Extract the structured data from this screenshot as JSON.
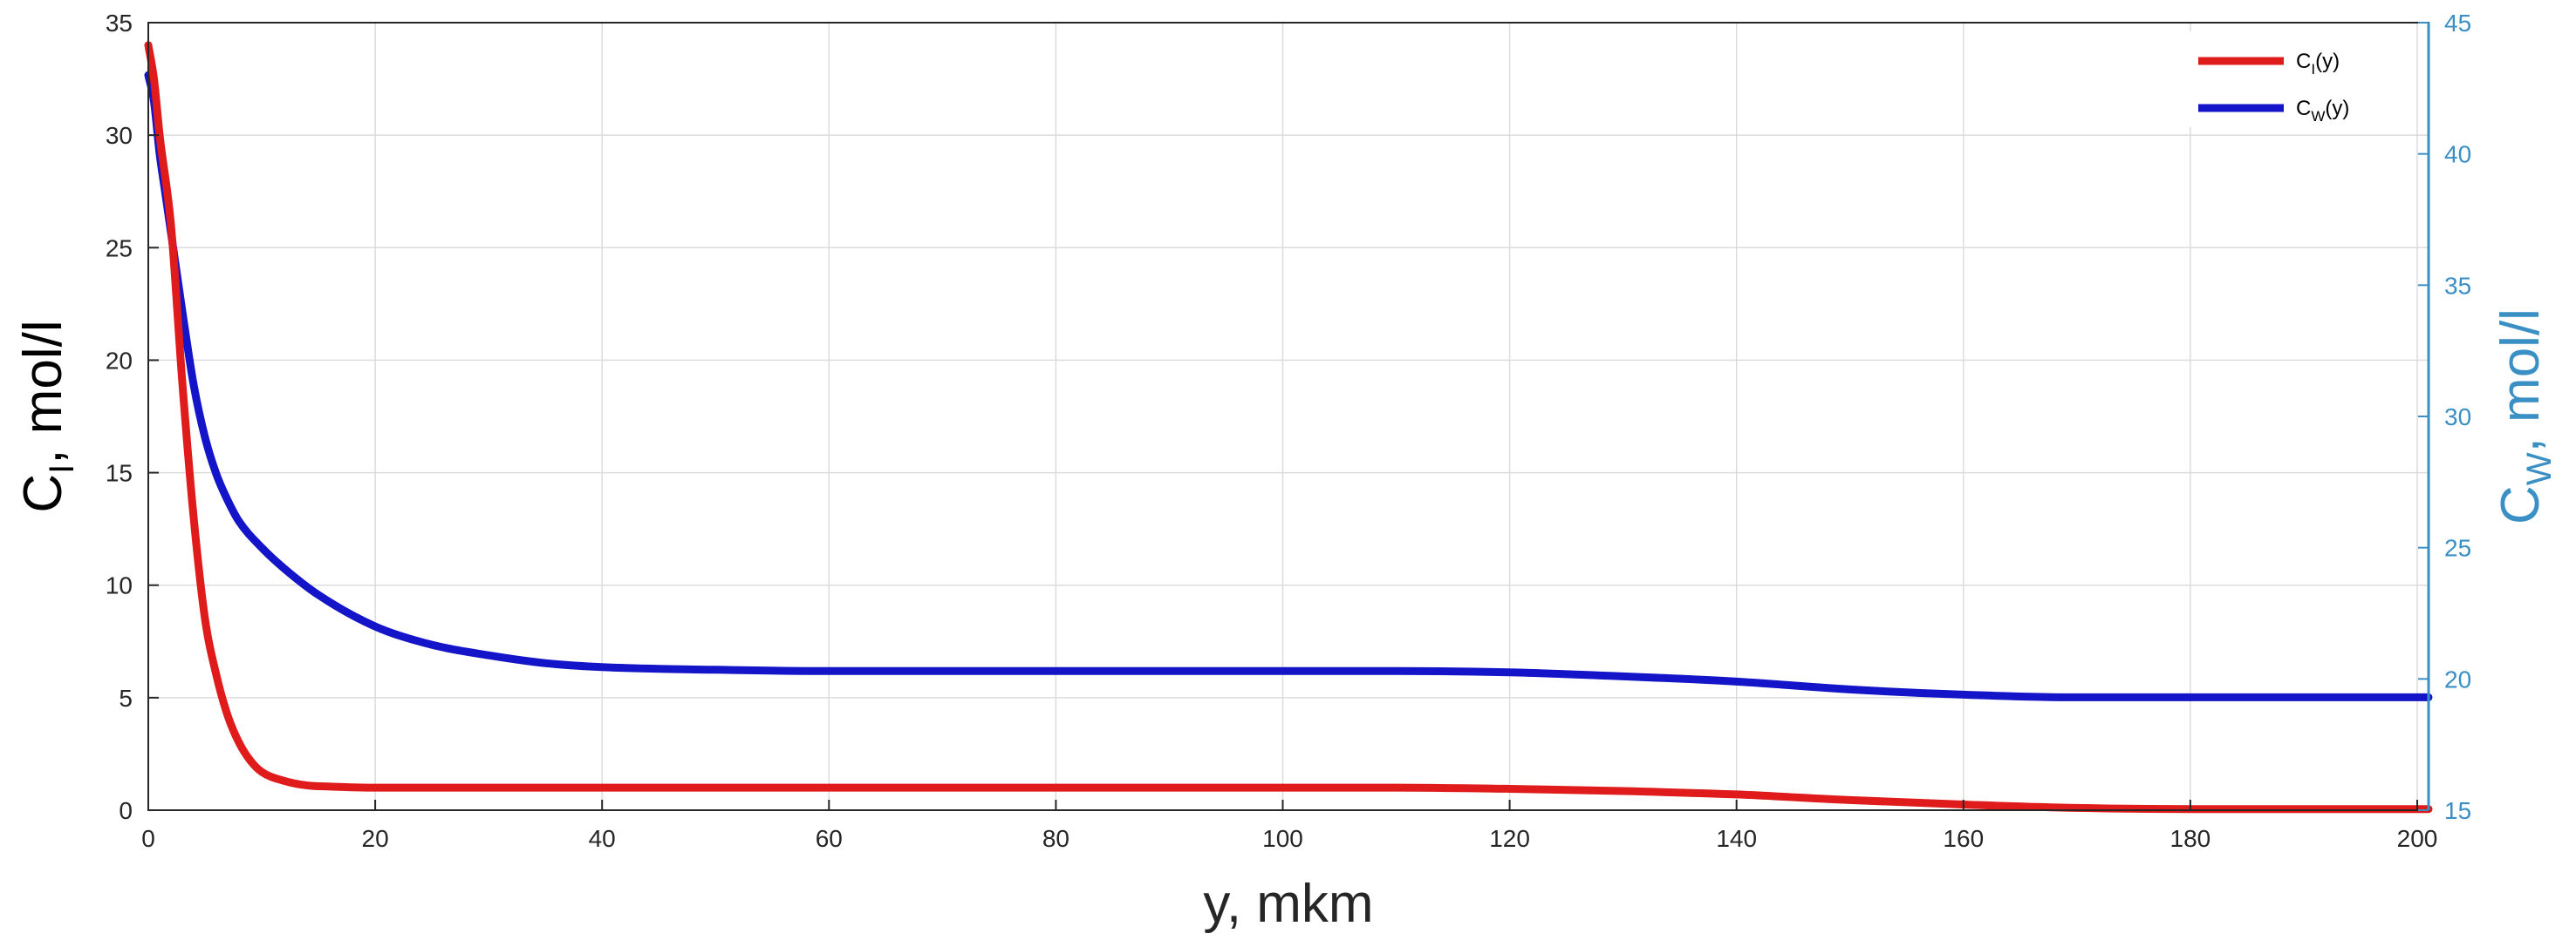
{
  "chart_data": {
    "type": "line",
    "xlabel": "y, mkm",
    "ylabel_left": {
      "main": "C",
      "sub": "I",
      "rest": ", mol/l"
    },
    "ylabel_right": {
      "main": "C",
      "sub": "W",
      "rest": ", mol/l"
    },
    "xlim": [
      0,
      201
    ],
    "ylim_left": [
      0,
      35
    ],
    "ylim_right": [
      15,
      45
    ],
    "x_ticks": [
      0,
      20,
      40,
      60,
      80,
      100,
      120,
      140,
      160,
      180,
      200
    ],
    "y_ticks_left": [
      0,
      5,
      10,
      15,
      20,
      25,
      30,
      35
    ],
    "y_ticks_right": [
      15,
      20,
      25,
      30,
      35,
      40,
      45
    ],
    "grid": true,
    "legend_position": "top-right",
    "colors": {
      "ci": "#e01b1b",
      "cw": "#1414c8",
      "right_axis": "#3a8fc4",
      "grid": "#dcdcdc"
    },
    "series": [
      {
        "name": "C_I(y)",
        "legend": {
          "main": "C",
          "sub": "I",
          "rest": "(y)"
        },
        "axis": "left",
        "x": [
          0,
          0.5,
          1,
          2,
          3,
          4,
          5,
          6,
          7,
          8,
          9,
          10,
          12,
          14,
          16,
          20,
          30,
          40,
          60,
          80,
          100,
          110,
          120,
          130,
          140,
          150,
          160,
          170,
          180,
          190,
          201
        ],
        "y": [
          34,
          32.5,
          30,
          26,
          19,
          13,
          8.5,
          6,
          4.2,
          3,
          2.2,
          1.7,
          1.3,
          1.1,
          1.05,
          1,
          1,
          1,
          1,
          1,
          1,
          1,
          0.95,
          0.85,
          0.7,
          0.45,
          0.25,
          0.1,
          0.05,
          0.05,
          0.05
        ]
      },
      {
        "name": "C_W(y)",
        "legend": {
          "main": "C",
          "sub": "W",
          "rest": "(y)"
        },
        "axis": "right",
        "x": [
          0,
          0.5,
          1,
          1.5,
          2,
          3,
          4,
          5,
          6,
          7,
          8,
          10,
          12,
          15,
          20,
          25,
          30,
          35,
          40,
          50,
          60,
          80,
          100,
          110,
          120,
          130,
          140,
          150,
          160,
          170,
          180,
          190,
          201
        ],
        "y": [
          43,
          42,
          40,
          38.5,
          37,
          34,
          31.2,
          29.2,
          27.8,
          26.8,
          26,
          25,
          24.2,
          23.2,
          22,
          21.3,
          20.9,
          20.6,
          20.45,
          20.35,
          20.3,
          20.3,
          20.3,
          20.3,
          20.25,
          20.1,
          19.9,
          19.6,
          19.4,
          19.3,
          19.3,
          19.3,
          19.3
        ]
      }
    ]
  }
}
